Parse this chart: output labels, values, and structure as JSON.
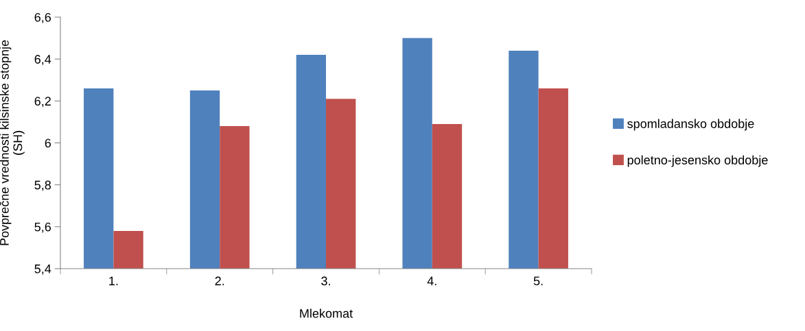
{
  "chart_data": {
    "type": "bar",
    "xlabel": "Mlekomat",
    "ylabel": "Povprečne vrednosti kilsinske stopnje\n(SH)",
    "categories": [
      "1.",
      "2.",
      "3.",
      "4.",
      "5."
    ],
    "series": [
      {
        "name": "spomladansko obdobje",
        "color": "#4f81bd",
        "values": [
          6.26,
          6.25,
          6.42,
          6.5,
          6.44
        ]
      },
      {
        "name": "poletno-jesensko obdobje",
        "color": "#c0504d",
        "values": [
          5.58,
          6.08,
          6.21,
          6.09,
          6.26
        ]
      }
    ],
    "ylim": [
      5.4,
      6.6
    ],
    "yticks": [
      {
        "value": 5.4,
        "label": "5,4"
      },
      {
        "value": 5.6,
        "label": "5,6"
      },
      {
        "value": 5.8,
        "label": "5,8"
      },
      {
        "value": 6,
        "label": "6"
      },
      {
        "value": 6.2,
        "label": "6,2"
      },
      {
        "value": 6.4,
        "label": "6,4"
      },
      {
        "value": 6.6,
        "label": "6,6"
      }
    ],
    "grid": false,
    "legend": "right"
  }
}
